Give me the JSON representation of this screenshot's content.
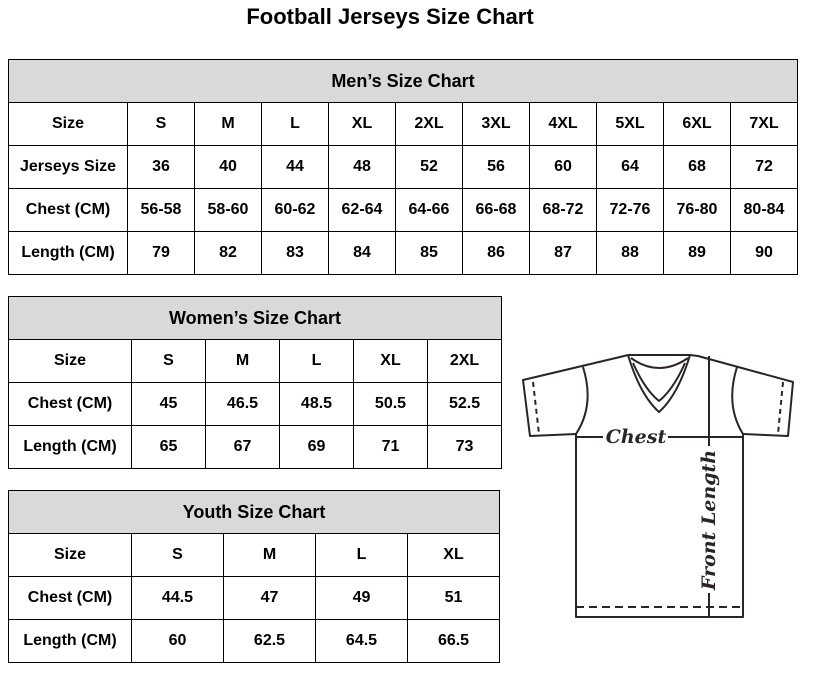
{
  "title": "Football Jerseys Size Chart",
  "men": {
    "heading": "Men’s Size Chart",
    "rows": [
      [
        "Size",
        "S",
        "M",
        "L",
        "XL",
        "2XL",
        "3XL",
        "4XL",
        "5XL",
        "6XL",
        "7XL"
      ],
      [
        "Jerseys Size",
        "36",
        "40",
        "44",
        "48",
        "52",
        "56",
        "60",
        "64",
        "68",
        "72"
      ],
      [
        "Chest (CM)",
        "56-58",
        "58-60",
        "60-62",
        "62-64",
        "64-66",
        "66-68",
        "68-72",
        "72-76",
        "76-80",
        "80-84"
      ],
      [
        "Length (CM)",
        "79",
        "82",
        "83",
        "84",
        "85",
        "86",
        "87",
        "88",
        "89",
        "90"
      ]
    ]
  },
  "women": {
    "heading": "Women’s Size Chart",
    "rows": [
      [
        "Size",
        "S",
        "M",
        "L",
        "XL",
        "2XL"
      ],
      [
        "Chest (CM)",
        "45",
        "46.5",
        "48.5",
        "50.5",
        "52.5"
      ],
      [
        "Length (CM)",
        "65",
        "67",
        "69",
        "71",
        "73"
      ]
    ]
  },
  "youth": {
    "heading": "Youth Size Chart",
    "rows": [
      [
        "Size",
        "S",
        "M",
        "L",
        "XL"
      ],
      [
        "Chest (CM)",
        "44.5",
        "47",
        "49",
        "51"
      ],
      [
        "Length (CM)",
        "60",
        "62.5",
        "64.5",
        "66.5"
      ]
    ]
  },
  "diagram": {
    "chest_label": "Chest",
    "length_label": "Front Length"
  },
  "colors": {
    "header_bg": "#d9d9d9",
    "line": "#2b2424"
  }
}
